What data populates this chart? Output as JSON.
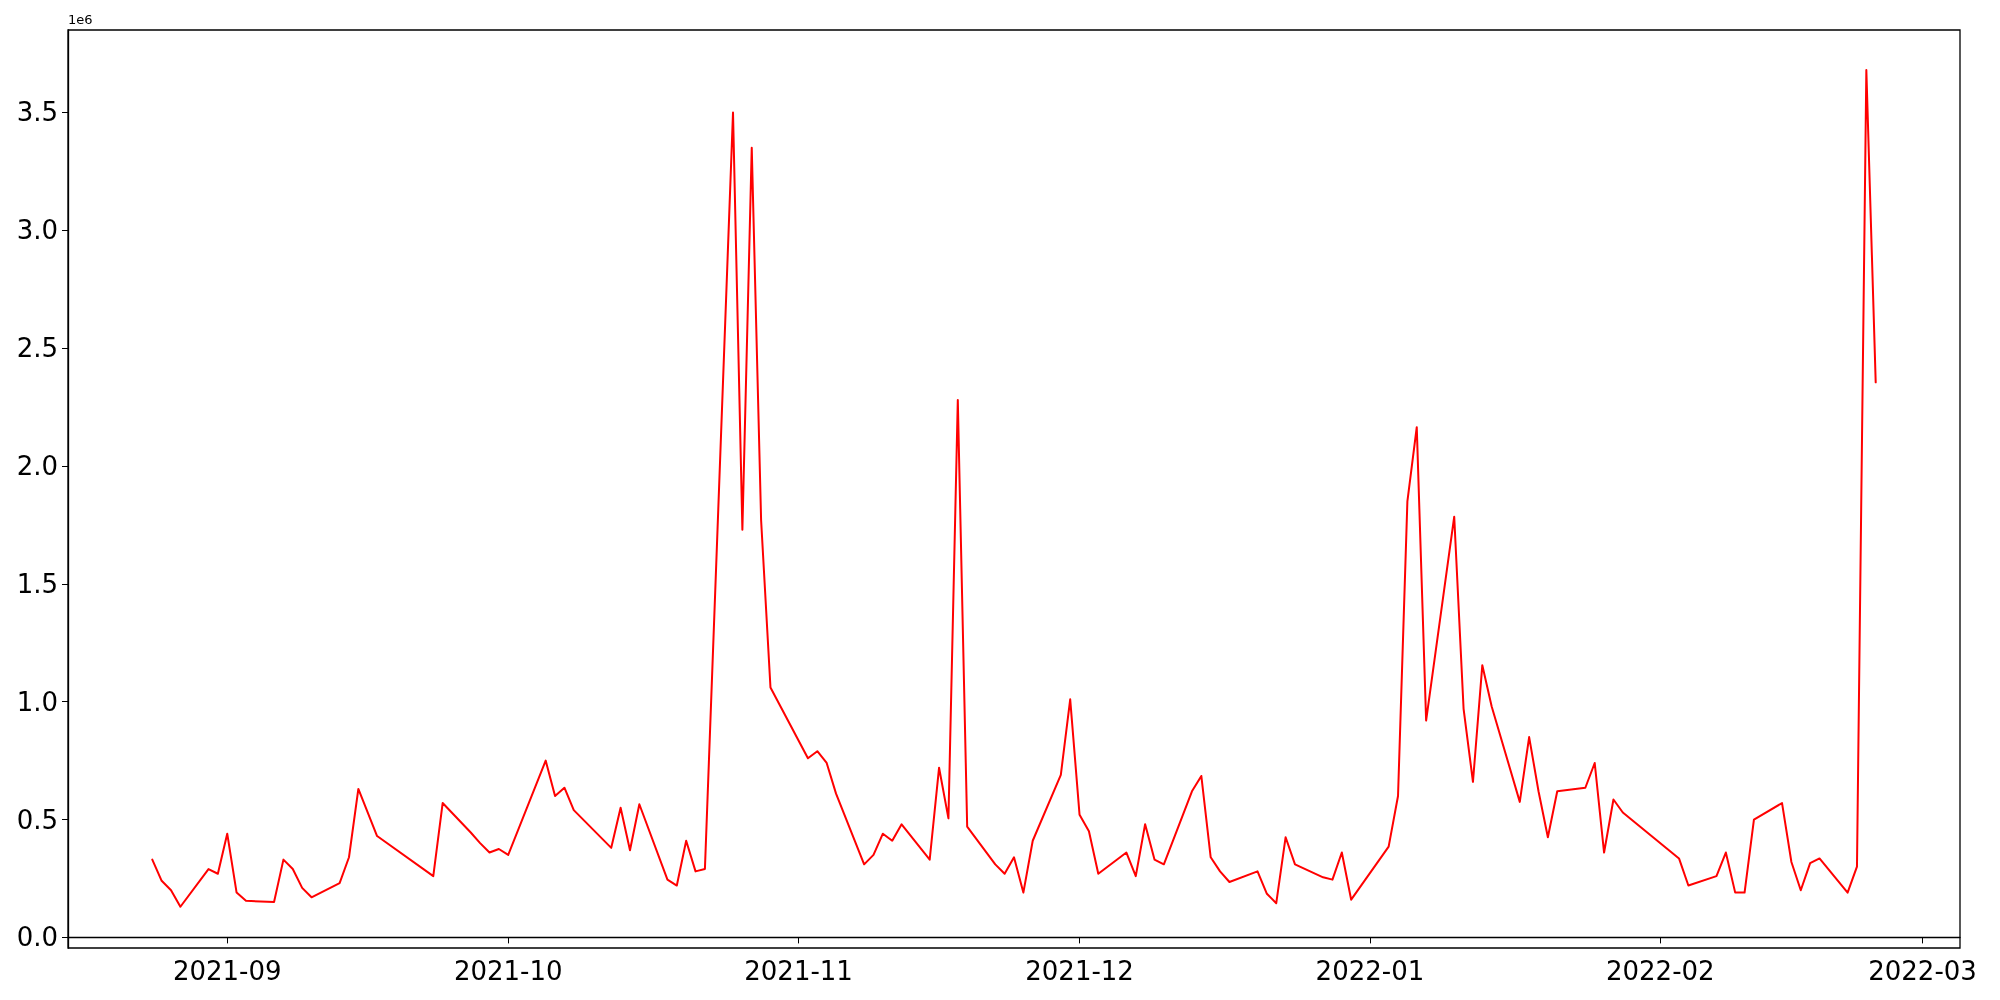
{
  "chart_data": {
    "type": "line",
    "annotations": [
      "1e6"
    ],
    "x": [
      "2021-08-24",
      "2021-08-25",
      "2021-08-26",
      "2021-08-27",
      "2021-08-30",
      "2021-08-31",
      "2021-09-01",
      "2021-09-02",
      "2021-09-03",
      "2021-09-06",
      "2021-09-07",
      "2021-09-08",
      "2021-09-09",
      "2021-09-10",
      "2021-09-13",
      "2021-09-14",
      "2021-09-15",
      "2021-09-17",
      "2021-09-23",
      "2021-09-24",
      "2021-09-27",
      "2021-09-28",
      "2021-09-29",
      "2021-09-30",
      "2021-10-01",
      "2021-10-05",
      "2021-10-06",
      "2021-10-07",
      "2021-10-08",
      "2021-10-12",
      "2021-10-13",
      "2021-10-14",
      "2021-10-15",
      "2021-10-18",
      "2021-10-19",
      "2021-10-20",
      "2021-10-21",
      "2021-10-22",
      "2021-10-25",
      "2021-10-26",
      "2021-10-27",
      "2021-10-28",
      "2021-10-29",
      "2021-11-02",
      "2021-11-03",
      "2021-11-04",
      "2021-11-05",
      "2021-11-08",
      "2021-11-09",
      "2021-11-10",
      "2021-11-11",
      "2021-11-12",
      "2021-11-15",
      "2021-11-16",
      "2021-11-17",
      "2021-11-18",
      "2021-11-19",
      "2021-11-22",
      "2021-11-23",
      "2021-11-24",
      "2021-11-25",
      "2021-11-26",
      "2021-11-29",
      "2021-11-30",
      "2021-12-01",
      "2021-12-02",
      "2021-12-03",
      "2021-12-06",
      "2021-12-07",
      "2021-12-08",
      "2021-12-09",
      "2021-12-10",
      "2021-12-13",
      "2021-12-14",
      "2021-12-15",
      "2021-12-16",
      "2021-12-17",
      "2021-12-20",
      "2021-12-21",
      "2021-12-22",
      "2021-12-23",
      "2021-12-24",
      "2021-12-27",
      "2021-12-28",
      "2021-12-29",
      "2021-12-30",
      "2022-01-03",
      "2022-01-04",
      "2022-01-05",
      "2022-01-06",
      "2022-01-07",
      "2022-01-10",
      "2022-01-11",
      "2022-01-12",
      "2022-01-13",
      "2022-01-14",
      "2022-01-17",
      "2022-01-18",
      "2022-01-19",
      "2022-01-20",
      "2022-01-21",
      "2022-01-24",
      "2022-01-25",
      "2022-01-26",
      "2022-01-27",
      "2022-01-28",
      "2022-02-03",
      "2022-02-04",
      "2022-02-07",
      "2022-02-08",
      "2022-02-09",
      "2022-02-10",
      "2022-02-11",
      "2022-02-14",
      "2022-02-15",
      "2022-02-16",
      "2022-02-17",
      "2022-02-18",
      "2022-02-21",
      "2022-02-22",
      "2022-02-23",
      "2022-02-24"
    ],
    "series": [
      {
        "color": "#ff0000",
        "values": [
          0.33,
          0.24,
          0.2,
          0.13,
          0.29,
          0.27,
          0.44,
          0.19,
          0.155,
          0.15,
          0.33,
          0.29,
          0.21,
          0.17,
          0.23,
          0.34,
          0.63,
          0.43,
          0.26,
          0.57,
          0.445,
          0.4,
          0.36,
          0.375,
          0.35,
          0.75,
          0.6,
          0.635,
          0.54,
          0.38,
          0.55,
          0.37,
          0.565,
          0.245,
          0.22,
          0.41,
          0.28,
          0.29,
          3.5,
          1.73,
          3.35,
          1.77,
          1.06,
          0.76,
          0.79,
          0.74,
          0.61,
          0.31,
          0.35,
          0.44,
          0.41,
          0.48,
          0.33,
          0.72,
          0.505,
          2.28,
          0.47,
          0.31,
          0.27,
          0.34,
          0.19,
          0.41,
          0.69,
          1.01,
          0.52,
          0.45,
          0.27,
          0.36,
          0.26,
          0.48,
          0.33,
          0.31,
          0.62,
          0.685,
          0.34,
          0.28,
          0.235,
          0.28,
          0.185,
          0.145,
          0.425,
          0.31,
          0.255,
          0.245,
          0.36,
          0.16,
          0.385,
          0.6,
          1.85,
          2.165,
          0.92,
          1.785,
          0.97,
          0.66,
          1.155,
          0.98,
          0.575,
          0.85,
          0.62,
          0.425,
          0.62,
          0.635,
          0.74,
          0.36,
          0.585,
          0.53,
          0.335,
          0.22,
          0.26,
          0.36,
          0.19,
          0.19,
          0.5,
          0.57,
          0.32,
          0.2,
          0.315,
          0.335,
          0.19,
          0.3,
          3.68,
          2.355
        ]
      }
    ],
    "xlim": [
      "2021-08-15",
      "2022-03-05"
    ],
    "xticks": [
      {
        "value": "2021-09-01",
        "label": "2021-09"
      },
      {
        "value": "2021-10-01",
        "label": "2021-10"
      },
      {
        "value": "2021-11-01",
        "label": "2021-11"
      },
      {
        "value": "2021-12-01",
        "label": "2021-12"
      },
      {
        "value": "2022-01-01",
        "label": "2022-01"
      },
      {
        "value": "2022-02-01",
        "label": "2022-02"
      },
      {
        "value": "2022-03-01",
        "label": "2022-03"
      }
    ],
    "ylim": [
      -0.045,
      3.85
    ],
    "yticks": [
      {
        "value": 0,
        "label": "0.0"
      },
      0.5,
      {
        "value": 1,
        "label": "1.0"
      },
      1.5,
      {
        "value": 2,
        "label": "2.0"
      },
      2.5,
      {
        "value": 3,
        "label": "3.0"
      },
      3.5
    ],
    "line_style": "solid",
    "marker": "none"
  }
}
